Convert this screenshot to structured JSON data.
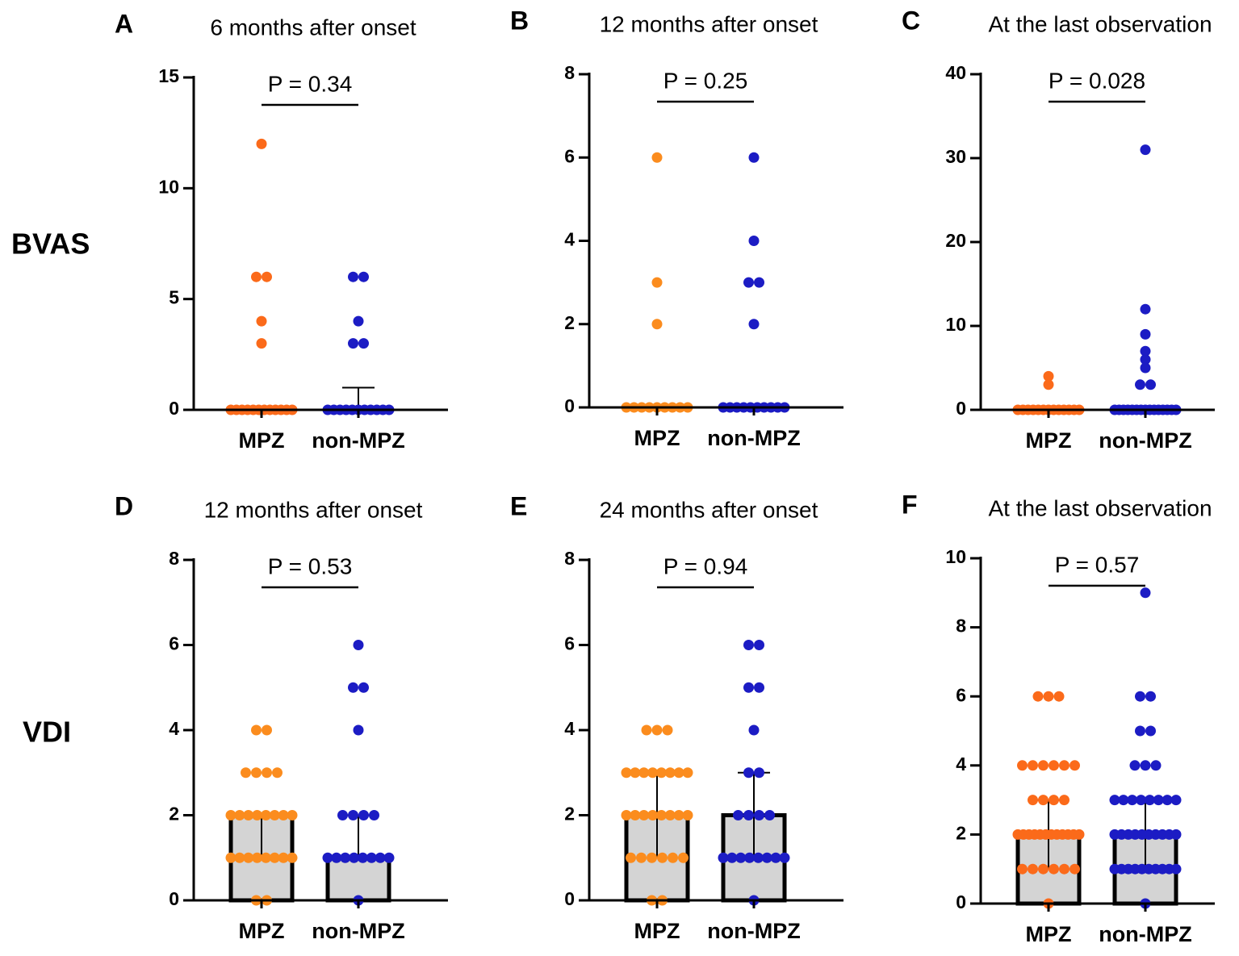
{
  "row_labels": [
    "BVAS",
    "VDI"
  ],
  "chart_data": [
    {
      "type": "dotplot",
      "label": "A",
      "title": "6 months after onset",
      "annotation": "P = 0.34",
      "categories": [
        "MPZ",
        "non-MPZ"
      ],
      "colors": [
        "#fb6a1a",
        "#1c1cc4"
      ],
      "points": [
        [
          12,
          6,
          6,
          4,
          3,
          0,
          0,
          0,
          0,
          0,
          0,
          0,
          0,
          0,
          0,
          0,
          0
        ],
        [
          6,
          6,
          4,
          3,
          3,
          0,
          0,
          0,
          0,
          0,
          0,
          0,
          0,
          0,
          0,
          0
        ]
      ],
      "bars": [
        0,
        0
      ],
      "errors_lower": [
        0,
        0
      ],
      "errors_upper": [
        0,
        1
      ],
      "ylim": [
        0,
        15
      ],
      "yticks": [
        0,
        5,
        10,
        15
      ]
    },
    {
      "type": "dotplot",
      "label": "B",
      "title": "12 months after onset",
      "annotation": "P = 0.25",
      "categories": [
        "MPZ",
        "non-MPZ"
      ],
      "colors": [
        "#fb8c1e",
        "#1c1cc4"
      ],
      "points": [
        [
          6,
          3,
          2,
          0,
          0,
          0,
          0,
          0,
          0,
          0,
          0,
          0
        ],
        [
          6,
          4,
          3,
          3,
          2,
          0,
          0,
          0,
          0,
          0,
          0,
          0,
          0,
          0,
          0
        ]
      ],
      "bars": [
        0,
        0
      ],
      "errors_lower": [
        0,
        0
      ],
      "errors_upper": [
        0,
        0
      ],
      "ylim": [
        0,
        8
      ],
      "yticks": [
        0,
        2,
        4,
        6,
        8
      ]
    },
    {
      "type": "dotplot",
      "label": "C",
      "title": "At the last observation",
      "annotation": "P = 0.028",
      "categories": [
        "MPZ",
        "non-MPZ"
      ],
      "colors": [
        "#fb6a1a",
        "#1c1cc4"
      ],
      "points": [
        [
          4,
          3,
          0,
          0,
          0,
          0,
          0,
          0,
          0,
          0,
          0,
          0,
          0,
          0,
          0
        ],
        [
          31,
          12,
          9,
          7,
          6,
          5,
          3,
          3,
          0,
          0,
          0,
          0,
          0,
          0,
          0,
          0,
          0,
          0,
          0,
          0,
          0,
          0,
          0
        ]
      ],
      "bars": [
        0,
        0
      ],
      "errors_lower": [
        0,
        0
      ],
      "errors_upper": [
        0,
        0
      ],
      "ylim": [
        0,
        40
      ],
      "yticks": [
        0,
        10,
        20,
        30,
        40
      ]
    },
    {
      "type": "dotplot",
      "label": "D",
      "title": "12 months after onset",
      "annotation": "P = 0.53",
      "categories": [
        "MPZ",
        "non-MPZ"
      ],
      "colors": [
        "#fb8c1e",
        "#1c1cc4"
      ],
      "points": [
        [
          4,
          4,
          3,
          3,
          3,
          3,
          2,
          2,
          2,
          2,
          2,
          2,
          2,
          2,
          1,
          1,
          1,
          1,
          1,
          1,
          1,
          1,
          0,
          0
        ],
        [
          6,
          5,
          5,
          4,
          2,
          2,
          2,
          2,
          1,
          1,
          1,
          1,
          1,
          1,
          1,
          1,
          0
        ]
      ],
      "bars": [
        2,
        1
      ],
      "errors_lower": [
        1,
        1
      ],
      "errors_upper": [
        2,
        2
      ],
      "ylim": [
        0,
        8
      ],
      "yticks": [
        0,
        2,
        4,
        6,
        8
      ]
    },
    {
      "type": "dotplot",
      "label": "E",
      "title": "24 months after onset",
      "annotation": "P = 0.94",
      "categories": [
        "MPZ",
        "non-MPZ"
      ],
      "colors": [
        "#fb8c1e",
        "#1c1cc4"
      ],
      "points": [
        [
          4,
          4,
          4,
          3,
          3,
          3,
          3,
          3,
          3,
          3,
          3,
          2,
          2,
          2,
          2,
          2,
          2,
          2,
          2,
          1,
          1,
          1,
          1,
          1,
          1,
          0,
          0
        ],
        [
          6,
          6,
          5,
          5,
          4,
          3,
          3,
          2,
          2,
          2,
          2,
          1,
          1,
          1,
          1,
          1,
          1,
          1,
          1,
          0
        ]
      ],
      "bars": [
        2,
        2
      ],
      "errors_lower": [
        1,
        1
      ],
      "errors_upper": [
        3,
        3
      ],
      "ylim": [
        0,
        8
      ],
      "yticks": [
        0,
        2,
        4,
        6,
        8
      ]
    },
    {
      "type": "dotplot",
      "label": "F",
      "title": "At the last observation",
      "annotation": "P = 0.57",
      "categories": [
        "MPZ",
        "non-MPZ"
      ],
      "colors": [
        "#fb6a1a",
        "#1c1cc4"
      ],
      "points": [
        [
          6,
          6,
          6,
          4,
          4,
          4,
          4,
          4,
          4,
          3,
          3,
          3,
          3,
          2,
          2,
          2,
          2,
          2,
          2,
          2,
          2,
          2,
          2,
          2,
          2,
          1,
          1,
          1,
          1,
          1,
          1,
          0
        ],
        [
          9,
          6,
          6,
          5,
          5,
          4,
          4,
          4,
          3,
          3,
          3,
          3,
          3,
          3,
          3,
          3,
          2,
          2,
          2,
          2,
          2,
          2,
          2,
          2,
          2,
          2,
          1,
          1,
          1,
          1,
          1,
          1,
          1,
          1,
          1,
          1,
          0
        ]
      ],
      "bars": [
        2,
        2
      ],
      "errors_lower": [
        1,
        1
      ],
      "errors_upper": [
        3,
        3
      ],
      "ylim": [
        0,
        10
      ],
      "yticks": [
        0,
        2,
        4,
        6,
        8,
        10
      ]
    }
  ]
}
